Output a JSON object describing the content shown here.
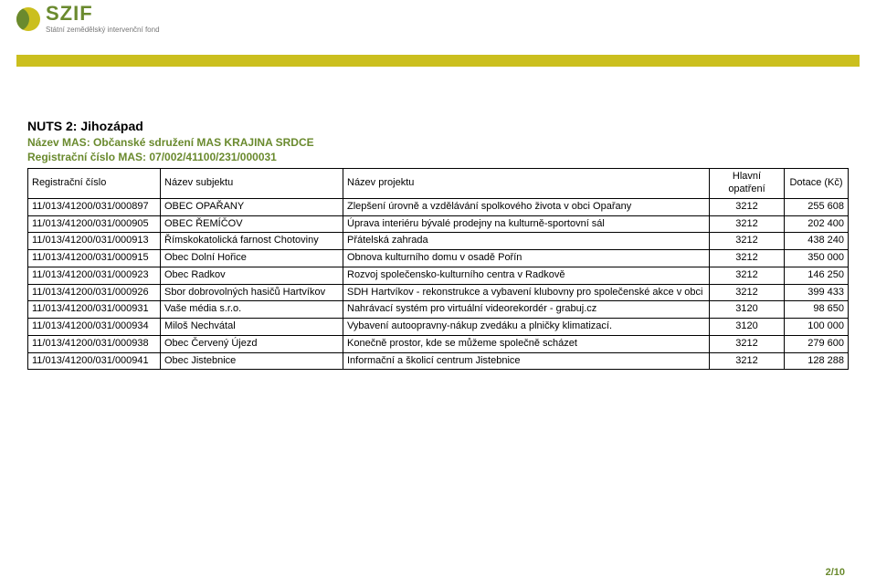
{
  "brand": {
    "name": "SZIF",
    "subtitle": "Státní zemědělský intervenční fond"
  },
  "colors": {
    "olive": "#cbbf1e",
    "green": "#6a8a2e",
    "text": "#000000",
    "bg": "#ffffff",
    "border": "#000000"
  },
  "heading": "NUTS 2: Jihozápad",
  "meta": {
    "line1_label": "Název MAS:",
    "line1_value": "Občanské sdružení MAS KRAJINA SRDCE",
    "line2_label": "Registrační číslo MAS:",
    "line2_value": "07/002/41100/231/000031"
  },
  "table": {
    "columns": [
      "Registrační číslo",
      "Název subjektu",
      "Název projektu",
      "Hlavní opatření",
      "Dotace (Kč)"
    ],
    "rows": [
      {
        "reg": "11/013/41200/031/000897",
        "subj": "OBEC OPAŘANY",
        "proj": "Zlepšení úrovně a vzdělávání spolkového života v obci Opařany",
        "op": "3212",
        "dot": "255 608"
      },
      {
        "reg": "11/013/41200/031/000905",
        "subj": "OBEC ŘEMÍČOV",
        "proj": "Úprava interiéru bývalé prodejny na kulturně-sportovní sál",
        "op": "3212",
        "dot": "202 400"
      },
      {
        "reg": "11/013/41200/031/000913",
        "subj": "Římskokatolická farnost Chotoviny",
        "proj": "Přátelská zahrada",
        "op": "3212",
        "dot": "438 240"
      },
      {
        "reg": "11/013/41200/031/000915",
        "subj": "Obec Dolní Hořice",
        "proj": "Obnova kulturního domu v osadě Pořín",
        "op": "3212",
        "dot": "350 000"
      },
      {
        "reg": "11/013/41200/031/000923",
        "subj": "Obec Radkov",
        "proj": "Rozvoj společensko-kulturního centra v Radkově",
        "op": "3212",
        "dot": "146 250"
      },
      {
        "reg": "11/013/41200/031/000926",
        "subj": "Sbor dobrovolných hasičů Hartvíkov",
        "proj": "SDH Hartvíkov - rekonstrukce a vybavení klubovny pro společenské akce v obci",
        "op": "3212",
        "dot": "399 433"
      },
      {
        "reg": "11/013/41200/031/000931",
        "subj": "Vaše média s.r.o.",
        "proj": "Nahrávací systém pro virtuální videorekordér - grabuj.cz",
        "op": "3120",
        "dot": "98 650"
      },
      {
        "reg": "11/013/41200/031/000934",
        "subj": "Miloš Nechvátal",
        "proj": "Vybavení autoopravny-nákup zvedáku a plničky klimatizací.",
        "op": "3120",
        "dot": "100 000"
      },
      {
        "reg": "11/013/41200/031/000938",
        "subj": "Obec Červený Újezd",
        "proj": "Konečně prostor, kde se můžeme společně scházet",
        "op": "3212",
        "dot": "279 600"
      },
      {
        "reg": "11/013/41200/031/000941",
        "subj": "Obec Jistebnice",
        "proj": "Informační a školicí centrum Jistebnice",
        "op": "3212",
        "dot": "128 288"
      }
    ]
  },
  "pager": "2/10"
}
